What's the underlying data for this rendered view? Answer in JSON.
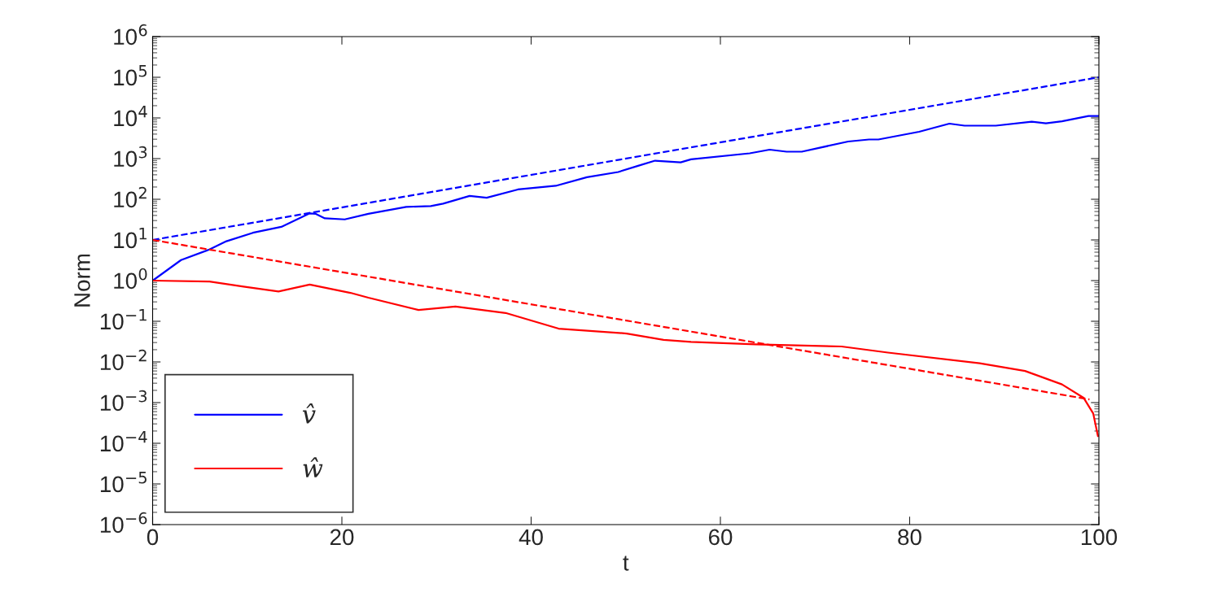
{
  "chart_data": {
    "type": "line",
    "xlabel": "t",
    "ylabel": "Norm",
    "log": "y",
    "grid": false,
    "legend": "bottom left",
    "xlim": [
      0,
      100
    ],
    "xticks": [
      0,
      20,
      40,
      60,
      80,
      100
    ],
    "ylim": [
      1e-06,
      1000000.0
    ],
    "yticks": [
      {
        "value": 1e-06,
        "label": "10$^{−6}$"
      },
      {
        "value": 1e-05,
        "label": "10$^{−5}$"
      },
      {
        "value": 0.0001,
        "label": "10$^{−4}$"
      },
      {
        "value": 0.001,
        "label": "10$^{−3}$"
      },
      {
        "value": 0.01,
        "label": "10$^{−2}$"
      },
      {
        "value": 0.1,
        "label": "10$^{−1}$"
      },
      {
        "value": 1,
        "label": "10$^{0}$"
      },
      {
        "value": 10,
        "label": "10$^{1}$"
      },
      {
        "value": 100,
        "label": "10$^{2}$"
      },
      {
        "value": 1000,
        "label": "10$^{3}$"
      },
      {
        "value": 10000,
        "label": "10$^{4}$"
      },
      {
        "value": 100000,
        "label": "10$^{5}$"
      },
      {
        "value": 1000000,
        "label": "10$^{6}$"
      }
    ],
    "series": [
      {
        "name": "v̂",
        "color": "#0000ff",
        "line_style": "solid",
        "x": [
          0,
          3.0,
          6.0,
          7.8,
          10.6,
          13.6,
          16.6,
          17.2,
          18.2,
          20.3,
          22.8,
          26.8,
          29.4,
          30.7,
          33.5,
          35.3,
          38.6,
          42.6,
          45.9,
          49.2,
          51.3,
          53.1,
          55.8,
          56.9,
          63.1,
          65.2,
          67.0,
          68.6,
          73.5,
          75.7,
          76.7,
          81.0,
          84.2,
          85.8,
          89.1,
          92.9,
          94.4,
          96.1,
          98.9,
          100
        ],
        "values": [
          1.0,
          3.2,
          5.8,
          9.3,
          15,
          21,
          45,
          44,
          34,
          32,
          44,
          65,
          68,
          78,
          121,
          109,
          174,
          214,
          349,
          468,
          665,
          890,
          810,
          960,
          1350,
          1660,
          1480,
          1480,
          2630,
          2950,
          2950,
          4570,
          7240,
          6460,
          6460,
          8100,
          7400,
          8300,
          11200,
          11200
        ]
      },
      {
        "name": "ŵ",
        "color": "#ff0000",
        "line_style": "solid",
        "x": [
          0,
          6.0,
          9.6,
          13.3,
          16.6,
          20.9,
          22.8,
          28.1,
          32.0,
          37.3,
          42.9,
          50.1,
          54.0,
          56.9,
          63.7,
          72.8,
          77.7,
          87.4,
          92.2,
          96.1,
          98.4,
          99.4,
          99.9
        ],
        "values": [
          1.0,
          0.95,
          0.71,
          0.54,
          0.8,
          0.5,
          0.38,
          0.19,
          0.23,
          0.16,
          0.066,
          0.05,
          0.035,
          0.031,
          0.027,
          0.024,
          0.017,
          0.0093,
          0.006,
          0.0028,
          0.0013,
          0.00054,
          0.00015
        ]
      },
      {
        "color": "#0000ff",
        "line_style": "dashed",
        "x": [
          0,
          100
        ],
        "values": [
          10,
          100000
        ]
      },
      {
        "color": "#ff0000",
        "line_style": "dashed",
        "x": [
          0,
          99
        ],
        "values": [
          10,
          0.0012
        ]
      }
    ]
  }
}
